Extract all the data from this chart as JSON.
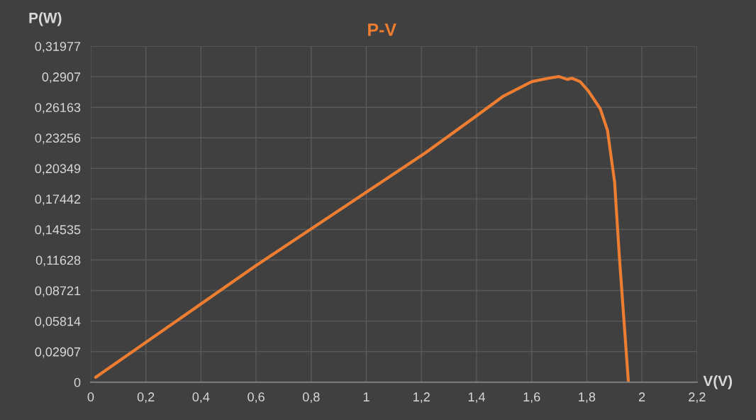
{
  "chart_data": {
    "type": "line",
    "title": "P-V",
    "xlabel": "V(V)",
    "ylabel": "P(W)",
    "series": [
      {
        "color": "#ed7d31",
        "x": [
          0.018,
          0.6,
          1.215,
          1.4,
          1.498,
          1.6,
          1.661,
          1.699,
          1.729,
          1.746,
          1.776,
          1.806,
          1.849,
          1.875,
          1.901,
          1.918,
          1.951
        ],
        "values": [
          0.0047,
          0.111,
          0.2184,
          0.2535,
          0.2724,
          0.286,
          0.2893,
          0.2909,
          0.2882,
          0.2893,
          0.286,
          0.277,
          0.2601,
          0.2398,
          0.1902,
          0.1203,
          0.0
        ]
      }
    ],
    "xlim": [
      0,
      2.2
    ],
    "xticks": [
      0,
      {
        "value": 0.2,
        "label": "0,2"
      },
      {
        "value": 0.4,
        "label": "0,4"
      },
      {
        "value": 0.6,
        "label": "0,6"
      },
      {
        "value": 0.8,
        "label": "0,8"
      },
      1,
      {
        "value": 1.2,
        "label": "1,2"
      },
      {
        "value": 1.4,
        "label": "1,4"
      },
      {
        "value": 1.6,
        "label": "1,6"
      },
      {
        "value": 1.8,
        "label": "1,8"
      },
      2,
      {
        "value": 2.2,
        "label": "2,2"
      }
    ],
    "ylim": [
      0,
      0.31977
    ],
    "yticks": [
      0,
      {
        "value": 0.02907,
        "label": "0,02907"
      },
      {
        "value": 0.05814,
        "label": "0,05814"
      },
      {
        "value": 0.08721,
        "label": "0,08721"
      },
      {
        "value": 0.11628,
        "label": "0,11628"
      },
      {
        "value": 0.14535,
        "label": "0,14535"
      },
      {
        "value": 0.17442,
        "label": "0,17442"
      },
      {
        "value": 0.20349,
        "label": "0,20349"
      },
      {
        "value": 0.23256,
        "label": "0,23256"
      },
      {
        "value": 0.26163,
        "label": "0,26163"
      },
      {
        "value": 0.2907,
        "label": "0,2907"
      },
      {
        "value": 0.31977,
        "label": "0,31977"
      }
    ],
    "grid": true,
    "marker": "none",
    "line_style": "solid"
  }
}
